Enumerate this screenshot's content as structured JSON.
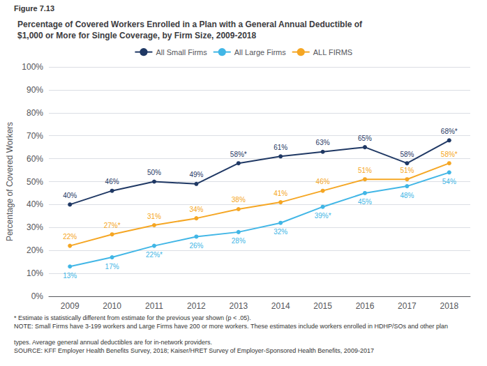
{
  "chart_data": {
    "type": "line",
    "title": "Percentage of Covered Workers Enrolled in a Plan with a General Annual Deductible of\n$1,000 or More for Single Coverage, by Firm Size, 2009-2018",
    "annotations": [
      "Figure 7.13",
      "* Estimate is statistically different from estimate for the previous year shown (p < .05).",
      "NOTE: Small Firms have 3-199 workers and Large Firms have 200 or more workers. These estimates include workers enrolled in HDHP/SOs and other plan",
      "types. Average general annual deductibles are for in-network providers.",
      "SOURCE: KFF Employer Health Benefits Survey, 2018; Kaiser/HRET Survey of Employer-Sponsored Health Benefits, 2009-2017"
    ],
    "ylabel": "Percentage of Covered Workers",
    "categories": [
      "2009",
      "2010",
      "2011",
      "2012",
      "2013",
      "2014",
      "2015",
      "2016",
      "2017",
      "2018"
    ],
    "series": [
      {
        "name": "All Small Firms",
        "color": "#1f3864",
        "marker": "circle",
        "values": [
          40,
          46,
          50,
          49,
          58,
          61,
          63,
          65,
          58,
          68
        ],
        "value_labels": [
          "40%",
          "46%",
          "50%",
          "49%",
          "58%*",
          "61%",
          "63%",
          "65%",
          "58%",
          "68%*"
        ]
      },
      {
        "name": "All Large Firms",
        "color": "#41b6e6",
        "marker": "circle",
        "values": [
          13,
          17,
          22,
          26,
          28,
          32,
          39,
          45,
          48,
          54
        ],
        "value_labels": [
          "13%",
          "17%",
          "22%*",
          "26%",
          "28%",
          "32%",
          "39%*",
          "45%",
          "48%",
          "54%"
        ]
      },
      {
        "name": "ALL FIRMS",
        "color": "#f5a623",
        "marker": "circle",
        "values": [
          22,
          27,
          31,
          34,
          38,
          41,
          46,
          51,
          51,
          58
        ],
        "value_labels": [
          "22%",
          "27%*",
          "31%",
          "34%",
          "38%",
          "41%",
          "46%",
          "51%",
          "51%",
          "58%*"
        ]
      }
    ],
    "ylim": [
      0,
      100
    ],
    "yticks": [
      {
        "value": 0,
        "label": "0%"
      },
      {
        "value": 10,
        "label": "10%"
      },
      {
        "value": 20,
        "label": "20%"
      },
      {
        "value": 30,
        "label": "30%"
      },
      {
        "value": 40,
        "label": "40%"
      },
      {
        "value": 50,
        "label": "50%"
      },
      {
        "value": 60,
        "label": "60%"
      },
      {
        "value": 70,
        "label": "70%"
      },
      {
        "value": 80,
        "label": "80%"
      },
      {
        "value": 90,
        "label": "90%"
      },
      {
        "value": 100,
        "label": "100%"
      }
    ],
    "grid": true,
    "legend": "top",
    "data_labels": true
  }
}
